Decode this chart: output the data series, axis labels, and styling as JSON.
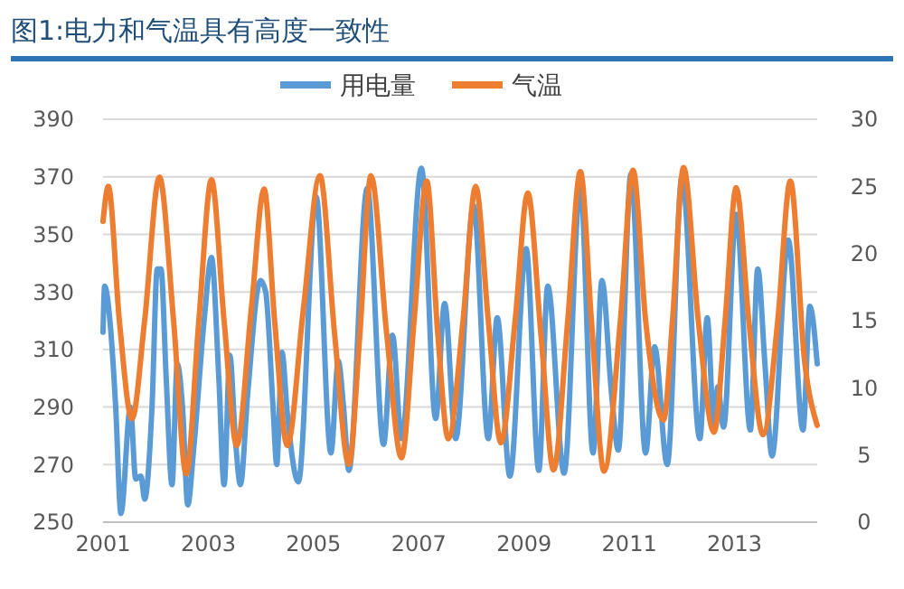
{
  "chart_data": {
    "type": "line",
    "title": "图1:电力和气温具有高度一致性",
    "legend": "top",
    "grid": "y",
    "marker": "none",
    "line_style": "solid",
    "xlim": [
      2001,
      2014.57
    ],
    "xticks": [
      2001,
      2003,
      2005,
      2007,
      2009,
      2011,
      2013
    ],
    "ylim": [
      250,
      390
    ],
    "yticks": [
      250,
      270,
      290,
      310,
      330,
      350,
      370,
      390
    ],
    "y2lim": [
      0,
      30
    ],
    "y2ticks": [
      0,
      5,
      10,
      15,
      20,
      25,
      30
    ],
    "series": [
      {
        "name": "用电量",
        "color": "#5b9bd5",
        "x": [
          2001.0,
          2001.03,
          2001.14,
          2001.24,
          2001.34,
          2001.52,
          2001.62,
          2001.72,
          2001.79,
          2001.93,
          2002.03,
          2002.1,
          2002.2,
          2002.31,
          2002.41,
          2002.51,
          2002.61,
          2002.72,
          2002.92,
          2003.06,
          2003.2,
          2003.3,
          2003.41,
          2003.51,
          2003.61,
          2003.75,
          2003.99,
          2004.09,
          2004.23,
          2004.3,
          2004.4,
          2004.5,
          2004.71,
          2005.05,
          2005.33,
          2005.47,
          2005.57,
          2005.67,
          2006.02,
          2006.33,
          2006.5,
          2006.67,
          2007.05,
          2007.32,
          2007.49,
          2007.7,
          2008.04,
          2008.32,
          2008.49,
          2008.73,
          2009.04,
          2009.28,
          2009.45,
          2009.76,
          2010.07,
          2010.31,
          2010.48,
          2010.66,
          2010.79,
          2011.03,
          2011.31,
          2011.48,
          2011.72,
          2012.0,
          2012.34,
          2012.48,
          2012.61,
          2012.68,
          2012.79,
          2013.03,
          2013.3,
          2013.44,
          2013.58,
          2013.71,
          2014.02,
          2014.3,
          2014.43,
          2014.57
        ],
        "values": [
          316,
          332,
          318,
          290,
          253,
          290,
          265,
          266,
          258,
          290,
          338,
          338,
          300,
          263,
          305,
          290,
          256,
          275,
          320,
          342,
          300,
          263,
          308,
          280,
          263,
          295,
          334,
          330,
          290,
          270,
          309,
          288,
          264,
          363,
          274,
          306,
          290,
          268,
          366,
          277,
          315,
          279,
          373,
          286,
          326,
          279,
          360,
          279,
          321,
          266,
          345,
          268,
          332,
          267,
          367,
          274,
          334,
          295,
          275,
          371,
          274,
          311,
          270,
          370,
          279,
          321,
          283,
          297,
          283,
          357,
          282,
          338,
          304,
          273,
          348,
          282,
          325,
          305
        ]
      },
      {
        "name": "气温",
        "color": "#ed7d31",
        "axis": "y2",
        "x": [
          2001.0,
          2001.1,
          2001.31,
          2001.55,
          2001.79,
          2002.07,
          2002.34,
          2002.58,
          2002.82,
          2003.06,
          2003.3,
          2003.54,
          2003.82,
          2004.06,
          2004.26,
          2004.5,
          2004.81,
          2005.12,
          2005.4,
          2005.67,
          2005.88,
          2006.09,
          2006.39,
          2006.67,
          2006.91,
          2007.15,
          2007.36,
          2007.56,
          2007.84,
          2008.08,
          2008.32,
          2008.56,
          2008.83,
          2009.07,
          2009.32,
          2009.56,
          2009.83,
          2010.07,
          2010.28,
          2010.52,
          2010.83,
          2011.07,
          2011.31,
          2011.65,
          2011.82,
          2012.03,
          2012.31,
          2012.61,
          2012.82,
          2013.03,
          2013.27,
          2013.54,
          2013.82,
          2014.06,
          2014.33,
          2014.57
        ],
        "values": [
          22.4,
          25,
          15,
          7.7,
          15,
          25.7,
          15,
          3.6,
          15,
          25.5,
          15,
          5.7,
          16,
          24.8,
          15,
          5.7,
          16,
          25.8,
          14,
          4.3,
          14,
          25.8,
          14,
          4.8,
          15,
          25.4,
          14,
          6.2,
          15,
          25,
          15,
          5.9,
          15,
          24.5,
          14,
          3.9,
          15,
          26.1,
          15,
          3.8,
          15,
          26.2,
          15,
          7.6,
          15,
          26.4,
          15,
          6.7,
          15,
          24.9,
          15,
          6.5,
          15,
          25.4,
          12,
          7.2
        ]
      }
    ]
  }
}
